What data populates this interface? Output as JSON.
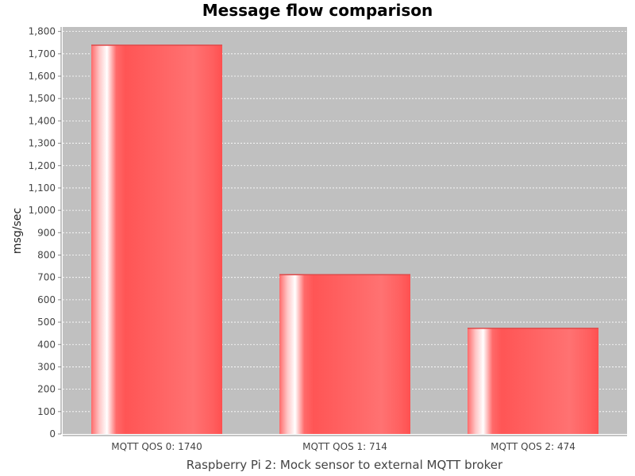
{
  "chart_data": {
    "type": "bar",
    "title": "Message flow comparison",
    "xlabel": "Raspberry Pi 2: Mock sensor to external MQTT broker",
    "ylabel": "msg/sec",
    "categories": [
      "MQTT QOS 0: 1740",
      "MQTT QOS 1: 714",
      "MQTT QOS 2: 474"
    ],
    "values": [
      1740,
      714,
      474
    ],
    "ylim": [
      0,
      1820
    ],
    "yticks": [
      0,
      100,
      200,
      300,
      400,
      500,
      600,
      700,
      800,
      900,
      1000,
      1100,
      1200,
      1300,
      1400,
      1500,
      1600,
      1700,
      1800
    ],
    "ytick_labels": [
      "0",
      "100",
      "200",
      "300",
      "400",
      "500",
      "600",
      "700",
      "800",
      "900",
      "1,000",
      "1,100",
      "1,200",
      "1,300",
      "1,400",
      "1,500",
      "1,600",
      "1,700",
      "1,800"
    ],
    "grid": true,
    "legend": false,
    "colors": {
      "bar": "#ff5555",
      "plot_background": "#c0c0c0",
      "gridline": "#ffffff",
      "axis": "#888888"
    }
  }
}
